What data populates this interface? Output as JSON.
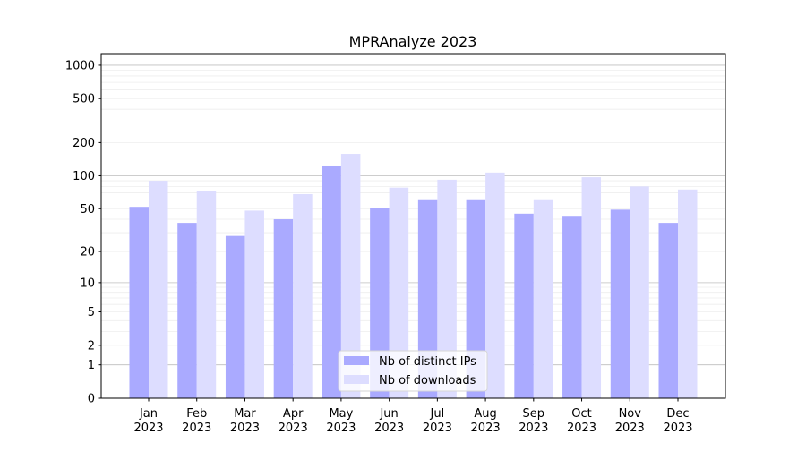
{
  "chart_data": {
    "type": "bar",
    "title": "MPRAnalyze 2023",
    "xlabel": "",
    "ylabel": "",
    "yscale": "log1p",
    "ylim": [
      0,
      1300
    ],
    "yticks": [
      0,
      1,
      2,
      5,
      10,
      20,
      50,
      100,
      200,
      500,
      1000
    ],
    "ytick_labels": [
      "0",
      "1",
      "2",
      "5",
      "10",
      "20",
      "50",
      "100",
      "200",
      "500",
      "1000"
    ],
    "categories": [
      "Jan\n2023",
      "Feb\n2023",
      "Mar\n2023",
      "Apr\n2023",
      "May\n2023",
      "Jun\n2023",
      "Jul\n2023",
      "Aug\n2023",
      "Sep\n2023",
      "Oct\n2023",
      "Nov\n2023",
      "Dec\n2023"
    ],
    "series": [
      {
        "name": "Nb of distinct IPs",
        "color": "#aaaaff",
        "values": [
          52,
          37,
          28,
          40,
          124,
          51,
          61,
          61,
          45,
          43,
          49,
          37
        ]
      },
      {
        "name": "Nb of downloads",
        "color": "#ddddff",
        "values": [
          90,
          73,
          48,
          68,
          158,
          78,
          92,
          107,
          61,
          97,
          80,
          75
        ]
      }
    ],
    "grid": true,
    "legend_position": "lower-center"
  }
}
